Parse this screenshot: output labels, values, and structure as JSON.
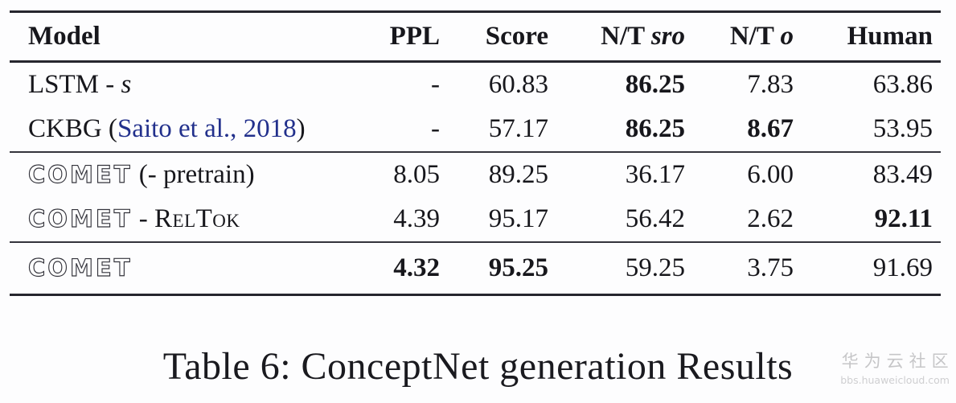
{
  "page": {
    "caption": "Table 6: ConceptNet generation Results",
    "watermark": {
      "title": "华为云社区",
      "url": "bbs.huaweicloud.com"
    },
    "colors": {
      "text": "#17171c",
      "rule": "#26262e",
      "cite_link": "#22308c",
      "watermark": "#c6c6c8",
      "background": "#fdfdfe"
    }
  },
  "table": {
    "columns": [
      {
        "align": "left",
        "segments": [
          {
            "t": "Model",
            "s": "plain"
          }
        ]
      },
      {
        "align": "right",
        "segments": [
          {
            "t": "PPL",
            "s": "plain"
          }
        ]
      },
      {
        "align": "right",
        "segments": [
          {
            "t": "Score",
            "s": "plain"
          }
        ]
      },
      {
        "align": "right",
        "segments": [
          {
            "t": "N/T ",
            "s": "plain"
          },
          {
            "t": "sro",
            "s": "italic"
          }
        ]
      },
      {
        "align": "right",
        "segments": [
          {
            "t": "N/T ",
            "s": "plain"
          },
          {
            "t": "o",
            "s": "italic"
          }
        ]
      },
      {
        "align": "right",
        "segments": [
          {
            "t": "Human",
            "s": "plain"
          }
        ]
      }
    ],
    "groups": [
      {
        "rows": [
          {
            "model": [
              {
                "t": "LSTM - ",
                "s": "plain"
              },
              {
                "t": "s",
                "s": "italic"
              }
            ],
            "values": [
              {
                "t": "-",
                "b": false
              },
              {
                "t": "60.83",
                "b": false
              },
              {
                "t": "86.25",
                "b": true
              },
              {
                "t": "7.83",
                "b": false
              },
              {
                "t": "63.86",
                "b": false
              }
            ]
          },
          {
            "model": [
              {
                "t": "CKBG (",
                "s": "plain"
              },
              {
                "t": "Saito et al., 2018",
                "s": "cite"
              },
              {
                "t": ")",
                "s": "plain"
              }
            ],
            "values": [
              {
                "t": "-",
                "b": false
              },
              {
                "t": "57.17",
                "b": false
              },
              {
                "t": "86.25",
                "b": true
              },
              {
                "t": "8.67",
                "b": true
              },
              {
                "t": "53.95",
                "b": false
              }
            ]
          }
        ]
      },
      {
        "rows": [
          {
            "model": [
              {
                "t": "COMET",
                "s": "comet"
              },
              {
                "t": " (- pretrain)",
                "s": "plain"
              }
            ],
            "values": [
              {
                "t": "8.05",
                "b": false
              },
              {
                "t": "89.25",
                "b": false
              },
              {
                "t": "36.17",
                "b": false
              },
              {
                "t": "6.00",
                "b": false
              },
              {
                "t": "83.49",
                "b": false
              }
            ]
          },
          {
            "model": [
              {
                "t": "COMET",
                "s": "comet"
              },
              {
                "t": " - ",
                "s": "plain"
              },
              {
                "t": "RelTok",
                "s": "smallcaps"
              }
            ],
            "values": [
              {
                "t": "4.39",
                "b": false
              },
              {
                "t": "95.17",
                "b": false
              },
              {
                "t": "56.42",
                "b": false
              },
              {
                "t": "2.62",
                "b": false
              },
              {
                "t": "92.11",
                "b": true
              }
            ]
          }
        ]
      },
      {
        "rows": [
          {
            "model": [
              {
                "t": "COMET",
                "s": "comet"
              }
            ],
            "values": [
              {
                "t": "4.32",
                "b": true
              },
              {
                "t": "95.25",
                "b": true
              },
              {
                "t": "59.25",
                "b": false
              },
              {
                "t": "3.75",
                "b": false
              },
              {
                "t": "91.69",
                "b": false
              }
            ]
          }
        ]
      }
    ]
  }
}
